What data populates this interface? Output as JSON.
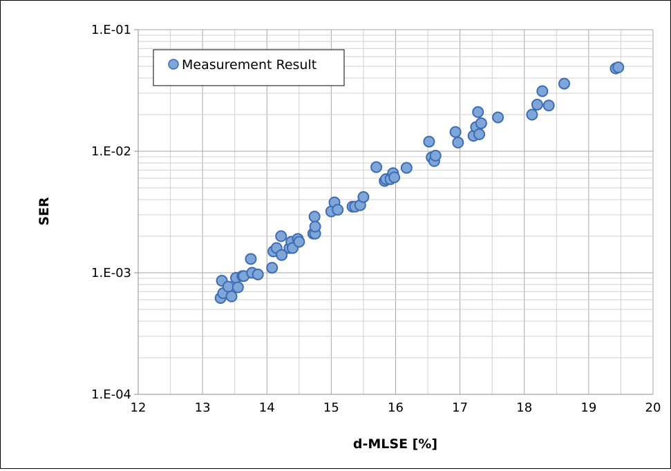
{
  "chart_data": {
    "type": "scatter",
    "xlabel": "d-MLSE [%]",
    "ylabel": "SER",
    "xlim": [
      12,
      20
    ],
    "ylim": [
      0.0001,
      0.1
    ],
    "y_scale": "log",
    "grid": true,
    "legend_position": "top-left",
    "x_ticks": [
      12,
      13,
      14,
      15,
      16,
      17,
      18,
      19,
      20
    ],
    "y_ticks": [
      0.0001,
      0.001,
      0.01,
      0.1
    ],
    "x_tick_labels": [
      "12",
      "13",
      "14",
      "15",
      "16",
      "17",
      "18",
      "19",
      "20"
    ],
    "y_tick_labels": [
      "1.E-04",
      "1.E-03",
      "1.E-02",
      "1.E-01"
    ],
    "marker_fill": "#7ea6d9",
    "marker_stroke": "#3d6cb3",
    "series": [
      {
        "name": "Measurement Result",
        "points": [
          [
            13.28,
            0.00062
          ],
          [
            13.3,
            0.00086
          ],
          [
            13.32,
            0.00068
          ],
          [
            13.4,
            0.00077
          ],
          [
            13.45,
            0.00064
          ],
          [
            13.52,
            0.00091
          ],
          [
            13.55,
            0.00076
          ],
          [
            13.62,
            0.00094
          ],
          [
            13.64,
            0.00094
          ],
          [
            13.75,
            0.0013
          ],
          [
            13.77,
            0.001
          ],
          [
            13.86,
            0.00097
          ],
          [
            14.08,
            0.0011
          ],
          [
            14.1,
            0.0015
          ],
          [
            14.15,
            0.0016
          ],
          [
            14.22,
            0.002
          ],
          [
            14.23,
            0.0014
          ],
          [
            14.35,
            0.0016
          ],
          [
            14.38,
            0.0018
          ],
          [
            14.4,
            0.0016
          ],
          [
            14.48,
            0.0019
          ],
          [
            14.5,
            0.0018
          ],
          [
            14.72,
            0.0021
          ],
          [
            14.74,
            0.0029
          ],
          [
            14.75,
            0.0021
          ],
          [
            14.75,
            0.0024
          ],
          [
            15.0,
            0.0032
          ],
          [
            15.05,
            0.0038
          ],
          [
            15.1,
            0.0033
          ],
          [
            15.33,
            0.0035
          ],
          [
            15.37,
            0.0035
          ],
          [
            15.45,
            0.0036
          ],
          [
            15.5,
            0.0042
          ],
          [
            15.7,
            0.0074
          ],
          [
            15.83,
            0.0057
          ],
          [
            15.85,
            0.0059
          ],
          [
            15.92,
            0.0059
          ],
          [
            15.96,
            0.0066
          ],
          [
            15.98,
            0.0061
          ],
          [
            16.17,
            0.0073
          ],
          [
            16.52,
            0.012
          ],
          [
            16.56,
            0.0089
          ],
          [
            16.6,
            0.0083
          ],
          [
            16.62,
            0.0092
          ],
          [
            16.93,
            0.0144
          ],
          [
            16.97,
            0.0118
          ],
          [
            17.21,
            0.0134
          ],
          [
            17.25,
            0.0158
          ],
          [
            17.28,
            0.021
          ],
          [
            17.3,
            0.0138
          ],
          [
            17.33,
            0.017
          ],
          [
            17.59,
            0.019
          ],
          [
            18.12,
            0.02
          ],
          [
            18.2,
            0.0242
          ],
          [
            18.28,
            0.0312
          ],
          [
            18.38,
            0.0238
          ],
          [
            18.62,
            0.036
          ],
          [
            19.42,
            0.048
          ],
          [
            19.46,
            0.049
          ]
        ]
      }
    ]
  }
}
